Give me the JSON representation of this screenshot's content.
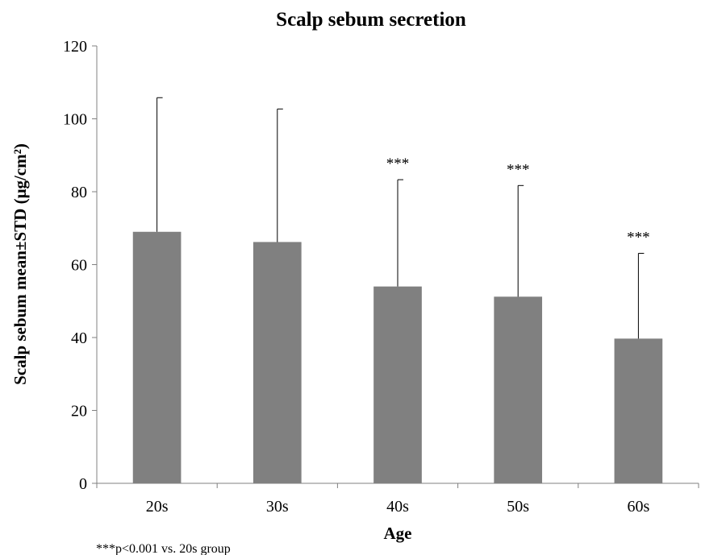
{
  "chart_data": {
    "type": "bar",
    "title": "Scalp sebum secretion",
    "xlabel": "Age",
    "ylabel": "Scalp sebum mean±STD (μg/cm²)",
    "categories": [
      "20s",
      "30s",
      "40s",
      "50s",
      "60s"
    ],
    "values": [
      69,
      66.2,
      54,
      51.2,
      39.7
    ],
    "error_plus": [
      36.8,
      36.5,
      29.3,
      30.5,
      23.4
    ],
    "significance": [
      "",
      "",
      "***",
      "***",
      "***"
    ],
    "ylim": [
      0,
      120
    ],
    "yticks": [
      0,
      20,
      40,
      60,
      80,
      100,
      120
    ],
    "bar_color": "#808080",
    "grid": false,
    "legend": "none",
    "footnote": "***p<0.001 vs. 20s group"
  }
}
